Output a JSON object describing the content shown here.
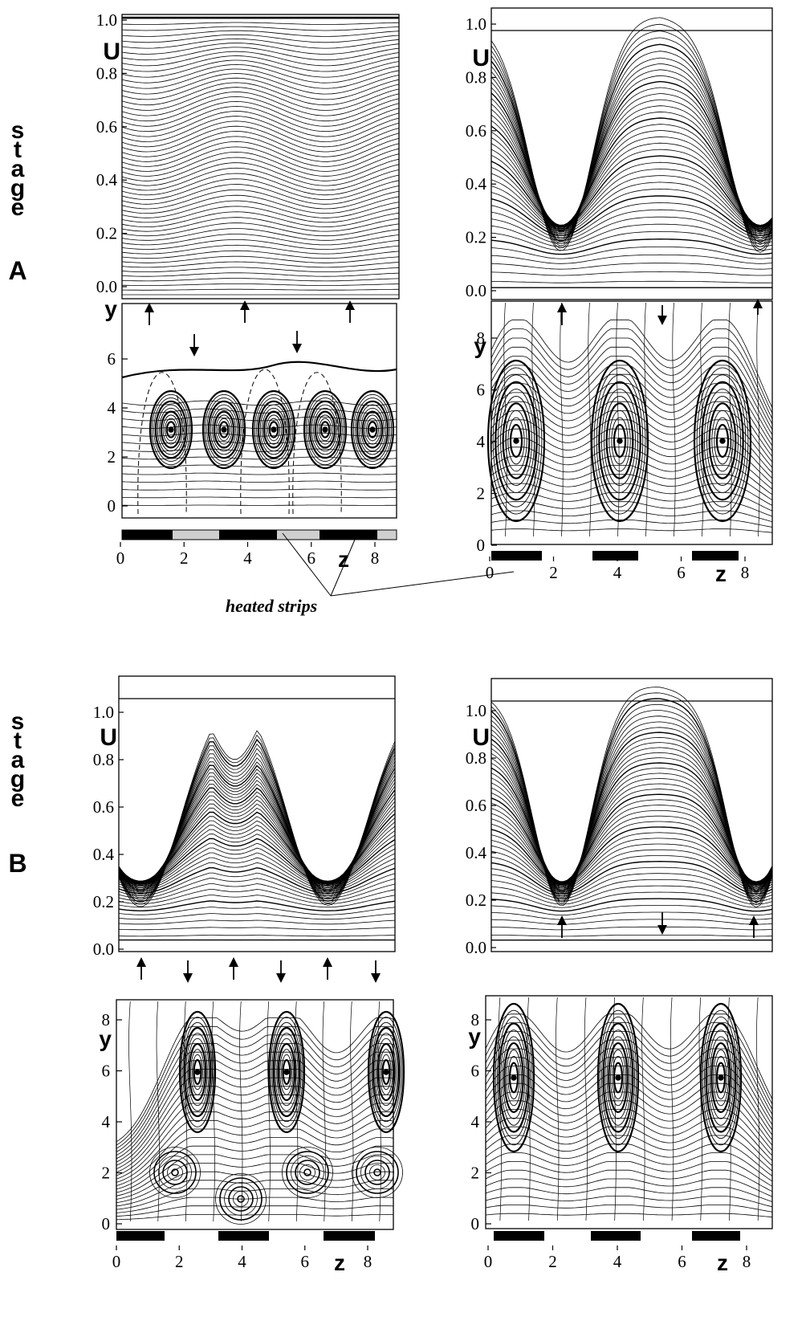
{
  "stages": {
    "A": {
      "word": [
        "s",
        "t",
        "a",
        "g",
        "e"
      ],
      "letter": "A"
    },
    "B": {
      "word": [
        "s",
        "t",
        "a",
        "g",
        "e"
      ],
      "letter": "B"
    }
  },
  "labels": {
    "u": "U",
    "y": "y",
    "z": "z",
    "annotation": "heated strips"
  },
  "ticks": {
    "u": [
      "0.0",
      "0.2",
      "0.4",
      "0.6",
      "0.8",
      "1.0"
    ],
    "y_a_left": [
      "0",
      "2",
      "4",
      "6"
    ],
    "y_right": [
      "0",
      "2",
      "4",
      "6",
      "8"
    ],
    "z_a_left": [
      "0",
      "2",
      "4",
      "6",
      "8"
    ],
    "z_right": [
      "0",
      "2",
      "4",
      "6",
      "8"
    ],
    "z_b": [
      "0",
      "2",
      "4",
      "6",
      "8"
    ]
  }
}
